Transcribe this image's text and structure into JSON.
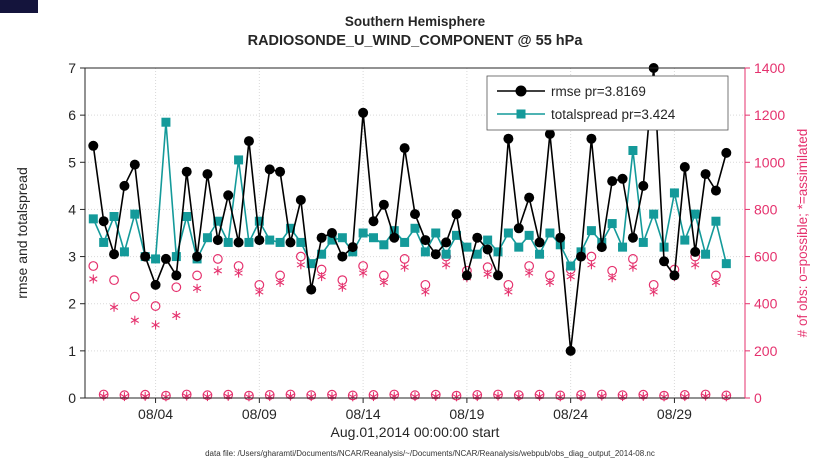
{
  "title": {
    "line1": "Southern Hemisphere",
    "line2": "RADIOSONDE_U_WIND_COMPONENT @ 55 hPa"
  },
  "caption": "data file: /Users/gharamti/Documents/NCAR/Reanalysis/~/Documents/NCAR/Reanalysis/webpub/obs_diag_output_2014-08.nc",
  "colors": {
    "rmse": "#000000",
    "totalspread": "#149a9a",
    "obs": "#e5326e",
    "grid": "#d9d9d9",
    "axis": "#262626",
    "artifact": "#14143c"
  },
  "legend": {
    "entries": [
      {
        "label": "rmse pr=3.8169"
      },
      {
        "label": "totalspread pr=3.424"
      }
    ]
  },
  "chart_data": {
    "type": "line",
    "title": "Southern Hemisphere",
    "subtitle": "RADIOSONDE_U_WIND_COMPONENT @ 55 hPa",
    "xlabel": "Aug.01,2014 00:00:00 start",
    "ylabel_left": "rmse and totalspread",
    "ylabel_right": "# of obs: o=possible; *=assimilated",
    "x_range": [
      0.6,
      32.4
    ],
    "x_ticks": {
      "positions": [
        4,
        9,
        14,
        19,
        24,
        29
      ],
      "labels": [
        "08/04",
        "08/09",
        "08/14",
        "08/19",
        "08/24",
        "08/29"
      ]
    },
    "left_axis": {
      "range": [
        0,
        7
      ],
      "ticks": [
        0,
        1,
        2,
        3,
        4,
        5,
        6,
        7
      ]
    },
    "right_axis": {
      "range": [
        0,
        1400
      ],
      "ticks": [
        0,
        200,
        400,
        600,
        800,
        1000,
        1200,
        1400
      ]
    },
    "grid": true,
    "legend_position": "top-center-inside",
    "t_start": 1.0,
    "t_step": 0.5,
    "series": [
      {
        "name": "rmse",
        "legend": "rmse pr=3.8169",
        "axis": "left",
        "marker": "circle",
        "values": [
          5.35,
          3.75,
          3.05,
          4.5,
          4.95,
          3.0,
          2.4,
          2.95,
          2.6,
          4.8,
          3.0,
          4.75,
          3.35,
          4.3,
          3.3,
          5.45,
          3.35,
          4.85,
          4.8,
          3.3,
          4.2,
          2.3,
          3.4,
          3.5,
          3.0,
          3.2,
          6.05,
          3.75,
          4.1,
          3.4,
          5.3,
          3.9,
          3.35,
          3.05,
          3.3,
          3.9,
          2.6,
          3.4,
          3.15,
          2.6,
          5.5,
          3.6,
          4.25,
          3.3,
          5.6,
          3.4,
          1.0,
          3.0,
          5.5,
          3.2,
          4.6,
          4.65,
          3.4,
          4.5,
          7.0,
          2.9,
          2.6,
          4.9,
          3.1,
          4.75,
          4.4,
          5.2
        ]
      },
      {
        "name": "totalspread",
        "legend": "totalspread pr=3.424",
        "axis": "left",
        "marker": "square",
        "values": [
          3.8,
          3.3,
          3.85,
          3.1,
          3.9,
          3.0,
          2.95,
          5.85,
          3.0,
          3.85,
          2.95,
          3.4,
          3.75,
          3.3,
          5.05,
          3.3,
          3.75,
          3.35,
          3.3,
          3.6,
          3.3,
          2.85,
          3.05,
          3.35,
          3.4,
          3.1,
          3.5,
          3.4,
          3.25,
          3.55,
          3.3,
          3.6,
          3.1,
          3.5,
          3.05,
          3.45,
          3.2,
          3.05,
          3.35,
          3.1,
          3.5,
          3.2,
          3.45,
          3.05,
          3.5,
          3.25,
          2.8,
          3.1,
          3.55,
          3.3,
          3.7,
          3.2,
          5.25,
          3.3,
          3.9,
          3.2,
          4.35,
          3.35,
          3.9,
          3.05,
          3.75,
          2.85
        ]
      },
      {
        "name": "possible",
        "legend": "o=possible",
        "axis": "right",
        "marker": "open-circle",
        "values": [
          560,
          15,
          500,
          12,
          430,
          14,
          390,
          10,
          470,
          15,
          520,
          12,
          590,
          14,
          560,
          10,
          480,
          13,
          520,
          15,
          600,
          12,
          545,
          14,
          500,
          11,
          560,
          13,
          520,
          15,
          590,
          12,
          480,
          14,
          600,
          10,
          540,
          13,
          555,
          15,
          480,
          12,
          560,
          14,
          520,
          11,
          545,
          13,
          600,
          15,
          540,
          12,
          590,
          14,
          480,
          10,
          545,
          13,
          600,
          15,
          520,
          11
        ]
      },
      {
        "name": "assimilated",
        "legend": "*=assimilated",
        "axis": "right",
        "marker": "asterisk",
        "values": [
          505,
          8,
          385,
          6,
          330,
          7,
          310,
          5,
          350,
          8,
          465,
          6,
          540,
          7,
          530,
          5,
          450,
          6,
          490,
          8,
          565,
          6,
          515,
          7,
          470,
          5,
          530,
          6,
          490,
          8,
          555,
          6,
          450,
          7,
          565,
          5,
          510,
          6,
          525,
          8,
          450,
          6,
          530,
          7,
          490,
          5,
          515,
          6,
          565,
          8,
          510,
          6,
          555,
          7,
          450,
          5,
          515,
          6,
          565,
          8,
          490,
          5
        ]
      }
    ]
  }
}
